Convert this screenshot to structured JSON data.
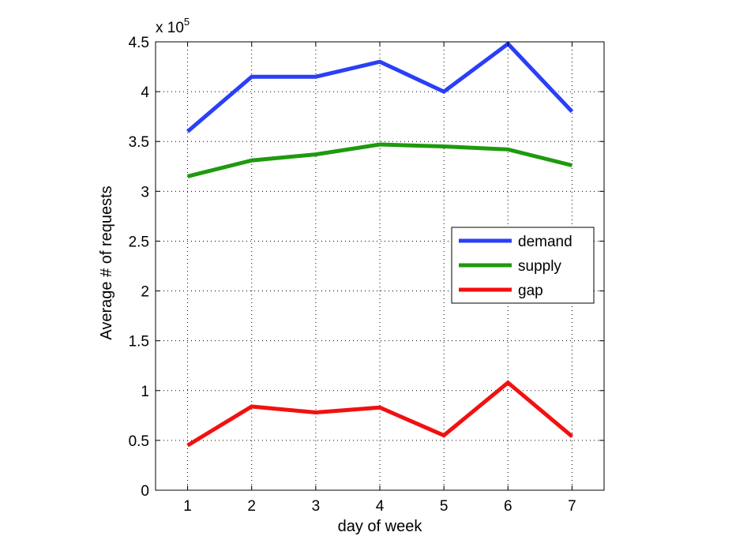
{
  "chart_data": {
    "type": "line",
    "title": "",
    "xlabel": "day of week",
    "ylabel": "Average # of requests",
    "y_multiplier_label": "x 10",
    "y_multiplier_exponent": "5",
    "x": [
      1,
      2,
      3,
      4,
      5,
      6,
      7
    ],
    "xlim": [
      0.5,
      7.5
    ],
    "ylim": [
      0,
      4.5
    ],
    "x_ticks": [
      "1",
      "2",
      "3",
      "4",
      "5",
      "6",
      "7"
    ],
    "y_ticks": [
      "0",
      "0.5",
      "1",
      "1.5",
      "2",
      "2.5",
      "3",
      "3.5",
      "4",
      "4.5"
    ],
    "grid": true,
    "legend_position": "center-right",
    "series": [
      {
        "name": "demand",
        "color": "#2a3ff7",
        "values": [
          3.6,
          4.15,
          4.15,
          4.3,
          4.0,
          4.48,
          3.8
        ]
      },
      {
        "name": "supply",
        "color": "#1e9a0e",
        "values": [
          3.15,
          3.31,
          3.37,
          3.47,
          3.45,
          3.42,
          3.26
        ]
      },
      {
        "name": "gap",
        "color": "#f21010",
        "values": [
          0.45,
          0.84,
          0.78,
          0.83,
          0.55,
          1.08,
          0.54
        ]
      }
    ]
  }
}
